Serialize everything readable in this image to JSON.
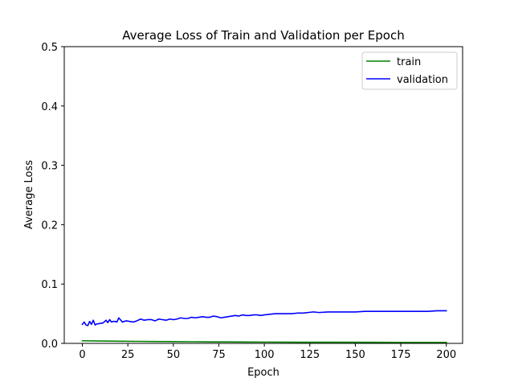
{
  "chart_data": {
    "type": "line",
    "title": "Average Loss of Train and Validation per Epoch",
    "xlabel": "Epoch",
    "ylabel": "Average Loss",
    "xlim": [
      -9.95,
      208.95
    ],
    "ylim": [
      0,
      0.5
    ],
    "xticks": [
      "0",
      "25",
      "50",
      "75",
      "100",
      "125",
      "150",
      "175",
      "200"
    ],
    "xtick_values": [
      0,
      25,
      50,
      75,
      100,
      125,
      150,
      175,
      200
    ],
    "yticks": [
      "0.0",
      "0.1",
      "0.2",
      "0.3",
      "0.4",
      "0.5"
    ],
    "ytick_values": [
      0,
      0.1,
      0.2,
      0.3,
      0.4,
      0.5
    ],
    "grid": false,
    "legend": "top-right",
    "series": [
      {
        "name": "train",
        "color": "#008000",
        "x": [
          0,
          10,
          20,
          30,
          40,
          50,
          60,
          70,
          80,
          90,
          100,
          120,
          140,
          160,
          180,
          200
        ],
        "y": [
          0.0044,
          0.004,
          0.0037,
          0.0034,
          0.0031,
          0.0029,
          0.0027,
          0.0025,
          0.0024,
          0.0023,
          0.0022,
          0.002,
          0.0019,
          0.0018,
          0.0017,
          0.0016
        ]
      },
      {
        "name": "validation",
        "color": "#0000ff",
        "x": [
          0,
          1,
          2,
          3,
          4,
          5,
          6,
          7,
          8,
          9,
          10,
          11,
          12,
          13,
          14,
          15,
          16,
          17,
          18,
          19,
          20,
          22,
          24,
          26,
          28,
          30,
          32,
          34,
          36,
          38,
          40,
          42,
          44,
          46,
          48,
          50,
          52,
          54,
          56,
          58,
          60,
          62,
          64,
          66,
          68,
          70,
          72,
          74,
          76,
          78,
          80,
          82,
          84,
          86,
          88,
          90,
          92,
          94,
          96,
          98,
          100,
          103,
          106,
          109,
          112,
          115,
          118,
          121,
          124,
          127,
          130,
          135,
          140,
          145,
          150,
          155,
          160,
          165,
          170,
          175,
          180,
          185,
          190,
          195,
          200
        ],
        "y": [
          0.032,
          0.036,
          0.031,
          0.03,
          0.037,
          0.032,
          0.039,
          0.031,
          0.033,
          0.033,
          0.034,
          0.034,
          0.036,
          0.039,
          0.035,
          0.04,
          0.036,
          0.037,
          0.037,
          0.036,
          0.043,
          0.036,
          0.038,
          0.037,
          0.036,
          0.038,
          0.041,
          0.039,
          0.04,
          0.04,
          0.038,
          0.041,
          0.04,
          0.039,
          0.041,
          0.04,
          0.041,
          0.043,
          0.042,
          0.042,
          0.044,
          0.043,
          0.044,
          0.045,
          0.044,
          0.044,
          0.046,
          0.045,
          0.043,
          0.044,
          0.045,
          0.046,
          0.047,
          0.046,
          0.048,
          0.047,
          0.047,
          0.048,
          0.048,
          0.047,
          0.048,
          0.049,
          0.05,
          0.05,
          0.05,
          0.05,
          0.051,
          0.051,
          0.052,
          0.053,
          0.052,
          0.053,
          0.053,
          0.053,
          0.053,
          0.054,
          0.054,
          0.054,
          0.054,
          0.054,
          0.054,
          0.054,
          0.054,
          0.055,
          0.055
        ]
      }
    ]
  }
}
